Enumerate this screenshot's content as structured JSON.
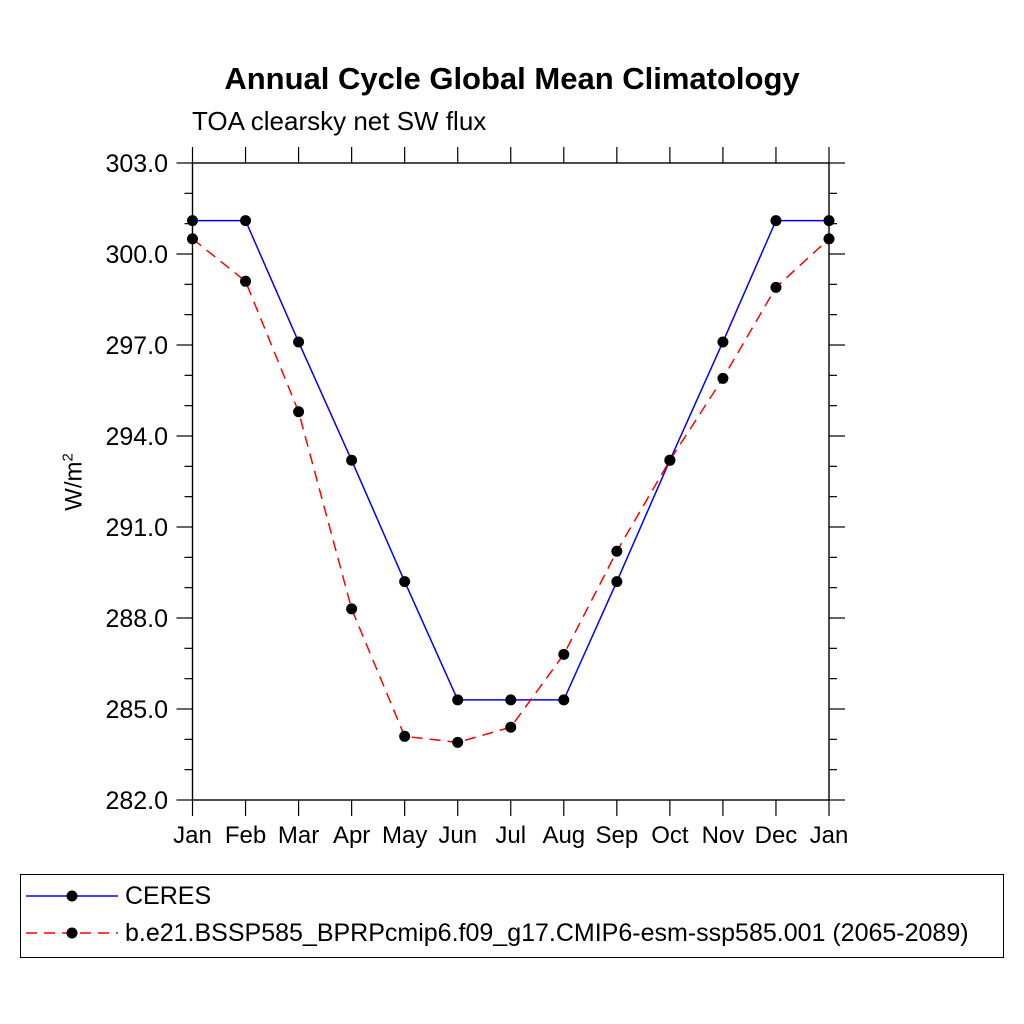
{
  "title": "Annual Cycle Global Mean Climatology",
  "subtitle": "TOA clearsky net SW flux",
  "chart_data": {
    "type": "line",
    "x_categories": [
      "Jan",
      "Feb",
      "Mar",
      "Apr",
      "May",
      "Jun",
      "Jul",
      "Aug",
      "Sep",
      "Oct",
      "Nov",
      "Dec",
      "Jan"
    ],
    "ylabel": "W/m²",
    "ylabel_base": "W/m",
    "ylabel_exp": "2",
    "ylim": [
      282.0,
      303.0
    ],
    "ytick_major_interval": 3.0,
    "ytick_minor_interval": 1.0,
    "ytick_labels": [
      "282.0",
      "285.0",
      "288.0",
      "291.0",
      "294.0",
      "297.0",
      "300.0",
      "303.0"
    ],
    "axis_color": "#000000",
    "background": "#ffffff",
    "grid": false,
    "legend_position": "bottom-left",
    "series": [
      {
        "name": "CERES",
        "color": "#0000ff",
        "line_style": "solid",
        "marker": "circle",
        "marker_color": "#000000",
        "values": [
          301.1,
          301.1,
          297.1,
          293.2,
          289.2,
          285.3,
          285.3,
          285.3,
          289.2,
          293.2,
          297.1,
          301.1,
          301.1
        ]
      },
      {
        "name": "b.e21.BSSP585_BPRPcmip6.f09_g17.CMIP6-esm-ssp585.001 (2065-2089)",
        "color": "#ff0000",
        "line_style": "dashed",
        "marker": "circle",
        "marker_color": "#000000",
        "values": [
          300.5,
          299.1,
          294.8,
          288.3,
          284.1,
          283.9,
          284.4,
          286.8,
          290.2,
          293.2,
          295.9,
          298.9,
          300.5
        ]
      }
    ]
  }
}
